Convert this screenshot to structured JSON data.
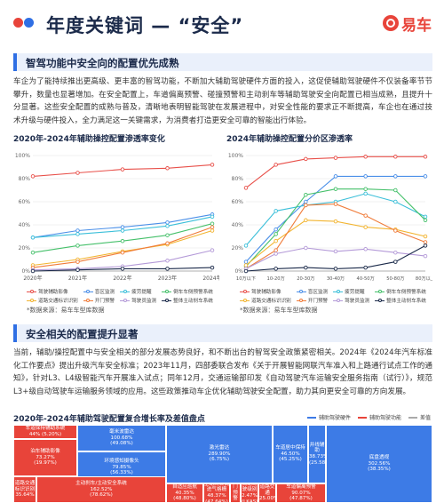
{
  "header": {
    "title": "年度关键词 — “安全”",
    "logo_text": "易车"
  },
  "section1": {
    "heading": "智驾功能中安全向的配置优先成熟",
    "paragraph": "车企为了能持续推出更高级、更丰富的智驾功能，不断加大辅助驾驶硬件方面的投入，这促使辅助驾驶硬件不仅装备率节节攀升，数量也显著增加。在安全配置上，车道偏离预警、碰撞预警和主动刹车等辅助驾驶安全向配置已相当成熟，且提升十分显著。这些安全配置的成熟与普及，清晰地表明智能驾驶在发展进程中，对安全性能的要求正不断提高，车企也在通过技术升级与硬件投入，全力满足这一关键需求，为消费者打造更安全可靠的智能出行体验。"
  },
  "section2": {
    "heading": "安全相关的配置提升显著",
    "paragraph": "当前，辅助/操控配置中与安全相关的部分发展态势良好，和不断出台的智驾安全政策紧密相关。2024年《2024年汽车标准化工作要点》提出升级汽车安全标准；2023年11月，四部委联合发布《关于开展智能网联汽车准入和上路通行试点工作的通知》，针对L3、L4级智能汽车开展准入试点；同年12月，交通运输部印发《自动驾驶汽车运输安全服务指南（试行）》，规范L3+级自动驾驶车运输服务领域的应用。这些政策推动车企优化辅助驾驶安全配置，助力其向更安全可靠的方向发展。"
  },
  "sources": {
    "left": "*数据来源：易车车型库数据",
    "right": "*数据来源：易车车型库数据"
  },
  "colors": {
    "c1": "#e8504a",
    "c2": "#4a8fe8",
    "c3": "#3bbfd9",
    "c4": "#45c06a",
    "c5": "#f2b430",
    "c6": "#f07c3a",
    "c7": "#b49ad8",
    "c8": "#1b2a4a",
    "tm_blue": "#3d7be6",
    "tm_red": "#e8443a"
  },
  "legend": [
    "驾驶辅助影像",
    "盲区监测",
    "疲劳提醒",
    "倒车车侧预警系统",
    "道路交通标识识别",
    "开门预警",
    "驾驶员监测",
    "整体主动刹车系统"
  ],
  "chart_data": [
    {
      "type": "line",
      "title": "2020年-2024年辅助操控配置渗透率变化",
      "x": [
        "2020年",
        "2021年",
        "2022年",
        "2023年",
        "2024年"
      ],
      "ylim": [
        0,
        100
      ],
      "yticks": [
        "0%",
        "20%",
        "40%",
        "60%",
        "80%",
        "100%"
      ],
      "series": [
        {
          "name": "驾驶辅助影像",
          "values": [
            82,
            85,
            88,
            89,
            92
          ]
        },
        {
          "name": "盲区监测",
          "values": [
            29,
            35,
            38,
            42,
            49
          ]
        },
        {
          "name": "疲劳提醒",
          "values": [
            29,
            32,
            35,
            39,
            47
          ]
        },
        {
          "name": "倒车车侧预警系统",
          "values": [
            16,
            22,
            26,
            31,
            41
          ]
        },
        {
          "name": "道路交通标识识别",
          "values": [
            5,
            10,
            17,
            23,
            35
          ]
        },
        {
          "name": "开门预警",
          "values": [
            3,
            8,
            16,
            24,
            38
          ]
        },
        {
          "name": "驾驶员监测",
          "values": [
            1,
            2,
            4,
            9,
            18
          ]
        },
        {
          "name": "整体主动刹车系统",
          "values": [
            0,
            1,
            2,
            2,
            3
          ]
        }
      ]
    },
    {
      "type": "line",
      "title": "2024年辅助操控配置分价区渗透率",
      "x": [
        "10万以下",
        "10-20万",
        "20-30万",
        "30-40万",
        "40-50万",
        "50-80万",
        "80万以上"
      ],
      "ylim": [
        0,
        100
      ],
      "yticks": [
        "0%",
        "20%",
        "40%",
        "60%",
        "80%",
        "100%"
      ],
      "series": [
        {
          "name": "驾驶辅助影像",
          "values": [
            72,
            92,
            97,
            98,
            99,
            99,
            99
          ]
        },
        {
          "name": "盲区监测",
          "values": [
            8,
            36,
            60,
            82,
            82,
            82,
            82
          ]
        },
        {
          "name": "疲劳提醒",
          "values": [
            22,
            52,
            57,
            60,
            67,
            60,
            47
          ]
        },
        {
          "name": "倒车车侧预警系统",
          "values": [
            4,
            32,
            66,
            71,
            71,
            70,
            44
          ]
        },
        {
          "name": "道路交通标识识别",
          "values": [
            5,
            26,
            44,
            43,
            38,
            36,
            30
          ]
        },
        {
          "name": "开门预警",
          "values": [
            2,
            18,
            57,
            58,
            48,
            35,
            25
          ]
        },
        {
          "name": "驾驶员监测",
          "values": [
            2,
            15,
            20,
            17,
            19,
            16,
            13
          ]
        },
        {
          "name": "整体主动刹车系统",
          "values": [
            0,
            2,
            3,
            2,
            3,
            8,
            22
          ]
        }
      ]
    }
  ],
  "treemap": {
    "title": "2020年-2024年辅助驾驶配置复合增长率及差值盘点",
    "legend": [
      "辅助驾驶硬件",
      "辅助驾驶功能",
      "差值"
    ],
    "cells": [
      {
        "label": "车道保持辅助系统",
        "value": "44% (5.20%)",
        "color": "tm_red"
      },
      {
        "label": "泊车辅助影像",
        "value": "73.27%\n(19.97%)",
        "color": "tm_red"
      },
      {
        "label": "毫米波雷达",
        "value": "100.68%\n(49.08%)",
        "color": "tm_blue"
      },
      {
        "label": "环境感知摄像头",
        "value": "79.85%\n(56.33%)",
        "color": "tm_blue"
      },
      {
        "label": "激光雷达",
        "value": "289.90%\n(6.75%)",
        "color": "tm_blue"
      },
      {
        "label": "车道居中保持",
        "value": "46.50%\n(45.25%)",
        "color": "tm_blue"
      },
      {
        "label": "并线辅助",
        "value": "38.73%\n(25.58%)",
        "color": "tm_blue"
      },
      {
        "label": "底盘透视",
        "value": "302.56%\n(38.35%)",
        "color": "tm_blue"
      },
      {
        "label": "道路交通标识识别",
        "value": "35.64%",
        "color": "tm_red"
      },
      {
        "label": "主动刹车/主动安全系统",
        "value": "162.52%\n(78.62%)",
        "color": "tm_red"
      },
      {
        "label": "自适应巡航",
        "value": "40.35%\n(48.80%)",
        "color": "tm_red"
      },
      {
        "label": "主动闭合式进气格栅",
        "value": "48.37%\n(47.64%)",
        "color": "tm_red"
      },
      {
        "label": "开门预警",
        "value": "35.85%",
        "color": "tm_red"
      },
      {
        "label": "自动驾驶级别",
        "value": "2.47%\n(LKAS)",
        "color": "tm_red"
      },
      {
        "label": "道路交通",
        "value": "25.00%",
        "color": "tm_red"
      },
      {
        "label": "车道偏离预警",
        "value": "90.07%\n(47.87%)",
        "color": "tm_red"
      }
    ]
  }
}
